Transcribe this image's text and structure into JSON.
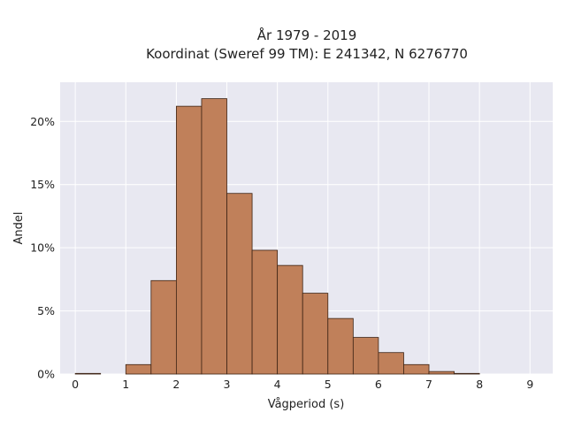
{
  "chart_data": {
    "type": "bar",
    "title_lines": [
      "År 1979 - 2019",
      "Koordinat (Sweref 99 TM): E 241342, N 6276770"
    ],
    "xlabel": "Vågperiod (s)",
    "ylabel": "Andel",
    "xlim": [
      -0.3,
      9.45
    ],
    "ylim": [
      0,
      0.231
    ],
    "x_ticks": [
      0,
      1,
      2,
      3,
      4,
      5,
      6,
      7,
      8,
      9
    ],
    "x_tick_labels": [
      "0",
      "1",
      "2",
      "3",
      "4",
      "5",
      "6",
      "7",
      "8",
      "9"
    ],
    "y_ticks": [
      0,
      0.05,
      0.1,
      0.15,
      0.2
    ],
    "y_tick_labels": [
      "0%",
      "5%",
      "10%",
      "15%",
      "20%"
    ],
    "bin_width": 0.5,
    "bins": [
      {
        "x0": 0.0,
        "value": 0.0005
      },
      {
        "x0": 0.5,
        "value": 0.0
      },
      {
        "x0": 1.0,
        "value": 0.0075
      },
      {
        "x0": 1.5,
        "value": 0.074
      },
      {
        "x0": 2.0,
        "value": 0.212
      },
      {
        "x0": 2.5,
        "value": 0.218
      },
      {
        "x0": 3.0,
        "value": 0.143
      },
      {
        "x0": 3.5,
        "value": 0.098
      },
      {
        "x0": 4.0,
        "value": 0.086
      },
      {
        "x0": 4.5,
        "value": 0.064
      },
      {
        "x0": 5.0,
        "value": 0.044
      },
      {
        "x0": 5.5,
        "value": 0.029
      },
      {
        "x0": 6.0,
        "value": 0.017
      },
      {
        "x0": 6.5,
        "value": 0.0075
      },
      {
        "x0": 7.0,
        "value": 0.002
      },
      {
        "x0": 7.5,
        "value": 0.0005
      }
    ],
    "grid": true,
    "colors": {
      "bar_fill": "#c0805a",
      "bar_edge": "#3d2314",
      "plot_background": "#e8e8f1",
      "grid": "#ffffff"
    }
  }
}
